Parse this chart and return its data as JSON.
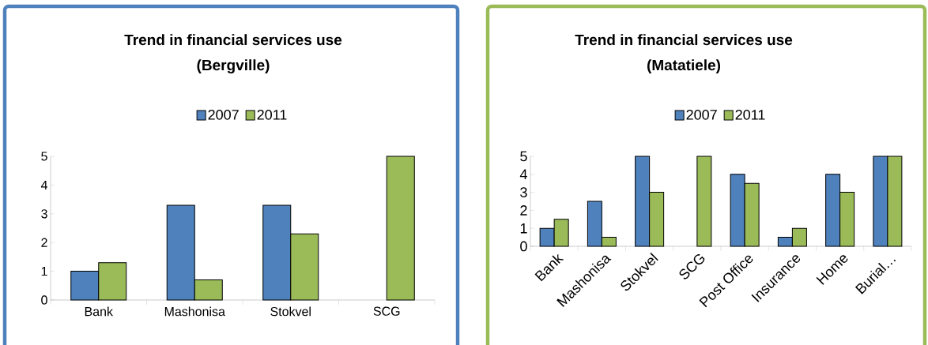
{
  "chart_data": [
    {
      "type": "bar",
      "title": "Trend in financial services use\n(Bergville)",
      "categories": [
        "Bank",
        "Mashonisa",
        "Stokvel",
        "SCG"
      ],
      "series": [
        {
          "name": "2007",
          "color": "#4f81bd",
          "values": [
            1,
            3.3,
            3.3,
            null
          ]
        },
        {
          "name": "2011",
          "color": "#9bbb59",
          "values": [
            1.3,
            0.7,
            2.3,
            5
          ]
        }
      ],
      "ylim": [
        0,
        5
      ],
      "yticks": [
        0,
        1,
        2,
        3,
        4,
        5
      ],
      "legend": "top"
    },
    {
      "type": "bar",
      "title": "Trend in financial services use\n(Matatiele)",
      "categories": [
        "Bank",
        "Mashonisa",
        "Stokvel",
        "SCG",
        "Post Office",
        "Insurance",
        "Home",
        "Burial…"
      ],
      "series": [
        {
          "name": "2007",
          "color": "#4f81bd",
          "values": [
            1,
            2.5,
            5,
            null,
            4,
            0.5,
            4,
            5
          ]
        },
        {
          "name": "2011",
          "color": "#9bbb59",
          "values": [
            1.5,
            0.5,
            3,
            5,
            3.5,
            1,
            3,
            5
          ]
        }
      ],
      "ylim": [
        0,
        5
      ],
      "yticks": [
        0,
        1,
        2,
        3,
        4,
        5
      ],
      "legend": "top"
    }
  ]
}
